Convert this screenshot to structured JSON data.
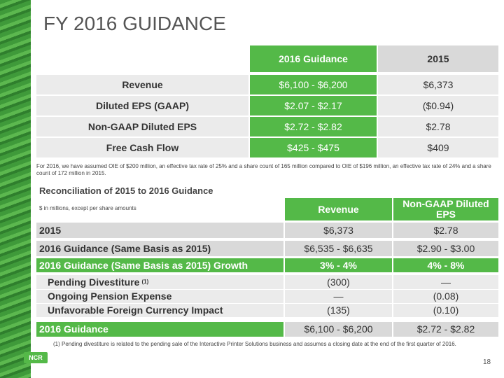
{
  "title": "FY 2016 GUIDANCE",
  "guidance_table": {
    "headers": [
      "2016 Guidance",
      "2015"
    ],
    "rows": [
      [
        "Revenue",
        "$6,100 - $6,200",
        "$6,373"
      ],
      [
        "Diluted EPS (GAAP)",
        "$2.07 - $2.17",
        "($0.94)"
      ],
      [
        "Non-GAAP Diluted EPS",
        "$2.72 - $2.82",
        "$2.78"
      ],
      [
        "Free Cash Flow",
        "$425 - $475",
        "$409"
      ]
    ],
    "note": "For 2016, we have assumed OIE of $200 million, an effective tax rate of 25% and a share count of 165 million compared to OIE of $196 million, an effective tax rate of 24% and a share count of 172 million in 2015."
  },
  "reconciliation": {
    "title": "Reconciliation of 2015 to 2016 Guidance",
    "units": "$ in millions, except per share amounts",
    "headers": [
      "Revenue",
      "Non-GAAP Diluted EPS"
    ],
    "rows": [
      {
        "label": "2015",
        "cells": [
          "$6,373",
          "$2.78"
        ]
      },
      {
        "label": "2016 Guidance (Same Basis as 2015)",
        "cells": [
          "$6,535 - $6,635",
          "$2.90 - $3.00"
        ]
      },
      {
        "label": "2016 Guidance (Same Basis as 2015) Growth",
        "cells": [
          "3% - 4%",
          "4% - 8%"
        ]
      },
      {
        "label": "Pending Divestiture",
        "sup": "(1)",
        "cells": [
          "(300)",
          "—"
        ]
      },
      {
        "label": "Ongoing Pension Expense",
        "cells": [
          "—",
          "(0.08)"
        ]
      },
      {
        "label": "Unfavorable Foreign Currency Impact",
        "cells": [
          "(135)",
          "(0.10)"
        ]
      },
      {
        "label": "2016 Guidance",
        "cells": [
          "$6,100 - $6,200",
          "$2.72 - $2.82"
        ]
      }
    ],
    "note": "(1) Pending divestiture is related to the pending sale of the Interactive Printer Solutions business and assumes a closing date at the end of the first quarter of 2016."
  },
  "logo": "NCR",
  "page_number": "18"
}
